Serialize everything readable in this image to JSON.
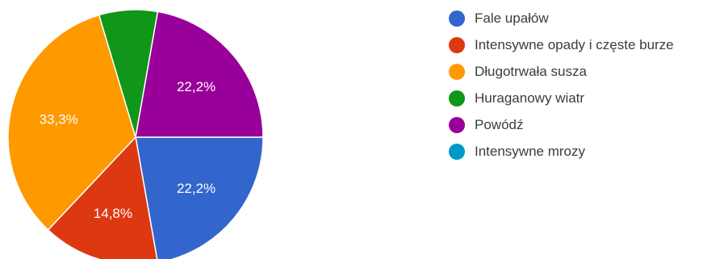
{
  "chart_data": {
    "type": "pie",
    "categories": [
      "Fale upałów",
      "Intensywne opady i częste burze",
      "Długotrwała susza",
      "Huraganowy wiatr",
      "Powódź",
      "Intensywne mrozy"
    ],
    "values": [
      22.2,
      14.8,
      33.3,
      7.4,
      22.2,
      0
    ],
    "value_labels": [
      "22,2%",
      "14,8%",
      "33,3%",
      "",
      "22,2%",
      ""
    ],
    "colors": [
      "#3366cc",
      "#dc3912",
      "#ff9900",
      "#109618",
      "#990099",
      "#0099c6"
    ],
    "legend_placement": "right",
    "title": ""
  }
}
